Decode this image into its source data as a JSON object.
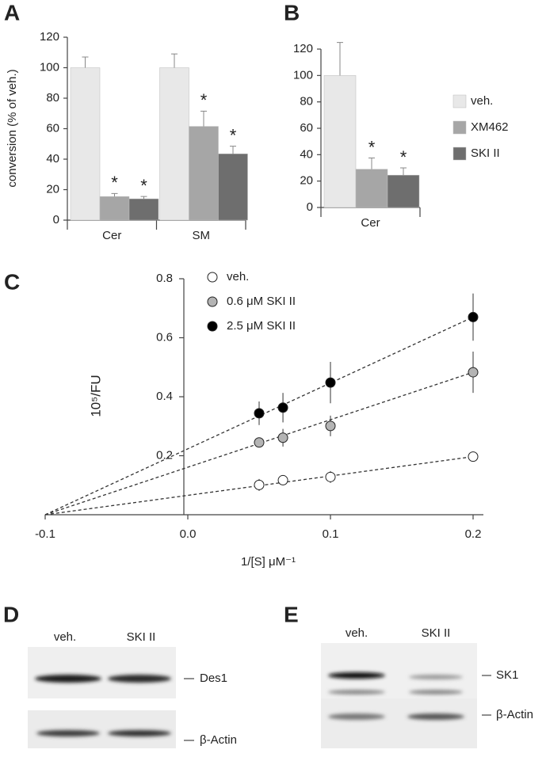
{
  "chart_data": [
    {
      "type": "bar",
      "panel": "A",
      "y_label": "conversion (% of veh.)",
      "categories": [
        "Cer",
        "SM"
      ],
      "ylim": [
        0,
        120
      ],
      "yticks": [
        0,
        20,
        40,
        60,
        80,
        100,
        120
      ],
      "series": [
        {
          "color": "#e8e8e8",
          "values": [
            100,
            100
          ],
          "errors": [
            7,
            9
          ]
        },
        {
          "color": "#a6a6a6",
          "values": [
            15.5,
            61.5
          ],
          "errors": [
            2,
            10
          ],
          "sig": [
            "*",
            "*"
          ]
        },
        {
          "color": "#6e6e6e",
          "values": [
            14,
            43.5
          ],
          "errors": [
            1.5,
            5
          ],
          "sig": [
            "*",
            "*"
          ]
        }
      ]
    },
    {
      "type": "bar",
      "panel": "B",
      "categories": [
        "Cer"
      ],
      "ylim": [
        0,
        120
      ],
      "yticks": [
        0,
        20,
        40,
        60,
        80,
        100,
        120
      ],
      "series": [
        {
          "name": "veh.",
          "color": "#e8e8e8",
          "values": [
            100
          ],
          "errors": [
            25
          ]
        },
        {
          "name": "XM462",
          "color": "#a6a6a6",
          "values": [
            29
          ],
          "errors": [
            8.5
          ],
          "sig": [
            "*"
          ]
        },
        {
          "name": "SKI II",
          "color": "#6e6e6e",
          "values": [
            24.5
          ],
          "errors": [
            5.5
          ],
          "sig": [
            "*"
          ]
        }
      ]
    },
    {
      "type": "scatter",
      "panel": "C",
      "x_label": "1/[S] μM⁻¹",
      "y_label": "10⁵/FU",
      "xlim": [
        -0.1,
        0.2
      ],
      "ylim": [
        0,
        0.8
      ],
      "xticks": [
        -0.1,
        {
          "value": 0,
          "label": "0.0"
        },
        0.1,
        0.2
      ],
      "yticks": [
        0.2,
        0.4,
        0.6,
        0.8
      ],
      "x": [
        0.05,
        0.0667,
        0.1,
        0.2
      ],
      "fit_x": [
        -0.1,
        0.2
      ],
      "series": [
        {
          "name": "veh.",
          "color": "#ffffff",
          "values": [
            0.101,
            0.117,
            0.128,
            0.197
          ],
          "errors": [
            0.02,
            0.01,
            0.02,
            0.005
          ],
          "fit": [
            0,
            0.197
          ]
        },
        {
          "name": "0.6 μM SKI II",
          "color": "#b4b4b4",
          "values": [
            0.245,
            0.261,
            0.301,
            0.483
          ],
          "errors": [
            0.01,
            0.03,
            0.035,
            0.07
          ],
          "fit": [
            0,
            0.483
          ]
        },
        {
          "name": "2.5 μM SKI II",
          "color": "#000000",
          "values": [
            0.344,
            0.363,
            0.448,
            0.67
          ],
          "errors": [
            0.04,
            0.05,
            0.07,
            0.08
          ],
          "fit": [
            0,
            0.67
          ]
        }
      ]
    }
  ],
  "blots": [
    {
      "panel": "D",
      "lanes": [
        "veh.",
        "SKI II"
      ],
      "bands": [
        "Des1",
        "β-Actin"
      ]
    },
    {
      "panel": "E",
      "lanes": [
        "veh.",
        "SKI II"
      ],
      "bands": [
        "SK1",
        "β-Actin"
      ]
    }
  ]
}
